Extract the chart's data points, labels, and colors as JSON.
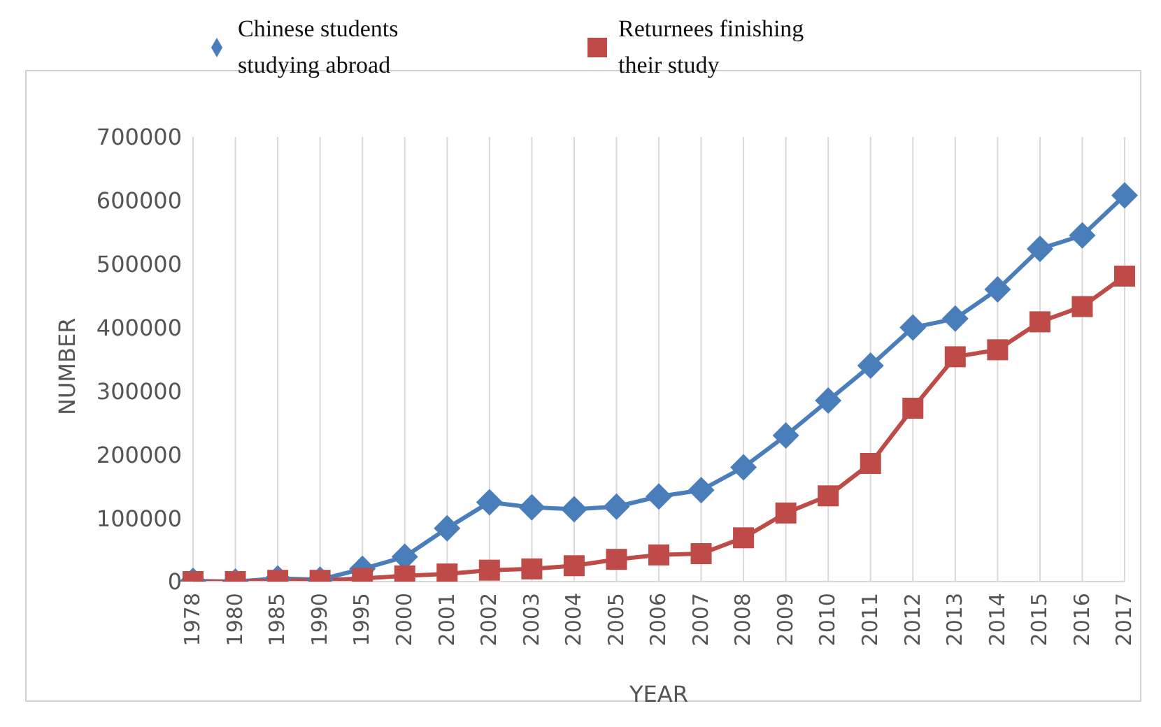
{
  "chart_data": {
    "type": "line",
    "xlabel": "YEAR",
    "ylabel": "NUMBER",
    "categories": [
      "1978",
      "1980",
      "1985",
      "1990",
      "1995",
      "2000",
      "2001",
      "2002",
      "2003",
      "2004",
      "2005",
      "2006",
      "2007",
      "2008",
      "2009",
      "2010",
      "2011",
      "2012",
      "2013",
      "2014",
      "2015",
      "2016",
      "2017"
    ],
    "series": [
      {
        "name": "Chinese students studying abroad",
        "color": "#4a7ebb",
        "marker": "diamond",
        "values": [
          1000,
          0,
          5000,
          3000,
          20000,
          39000,
          84000,
          125000,
          117000,
          114000,
          118000,
          134000,
          144000,
          180000,
          230000,
          285000,
          340000,
          400000,
          414000,
          460000,
          524000,
          545000,
          608000
        ]
      },
      {
        "name": "Returnees finishing their study",
        "color": "#be4b48",
        "marker": "square",
        "values": [
          0,
          0,
          2000,
          2000,
          5000,
          9000,
          12000,
          18000,
          20000,
          25000,
          35000,
          42000,
          44000,
          69000,
          108000,
          135000,
          186000,
          273000,
          354000,
          365000,
          409000,
          433000,
          481000
        ]
      }
    ],
    "ylim": [
      0,
      700000
    ],
    "yticks": [
      0,
      100000,
      200000,
      300000,
      400000,
      500000,
      600000,
      700000
    ],
    "grid": "x",
    "legend": "top left",
    "line_style": "solid"
  }
}
